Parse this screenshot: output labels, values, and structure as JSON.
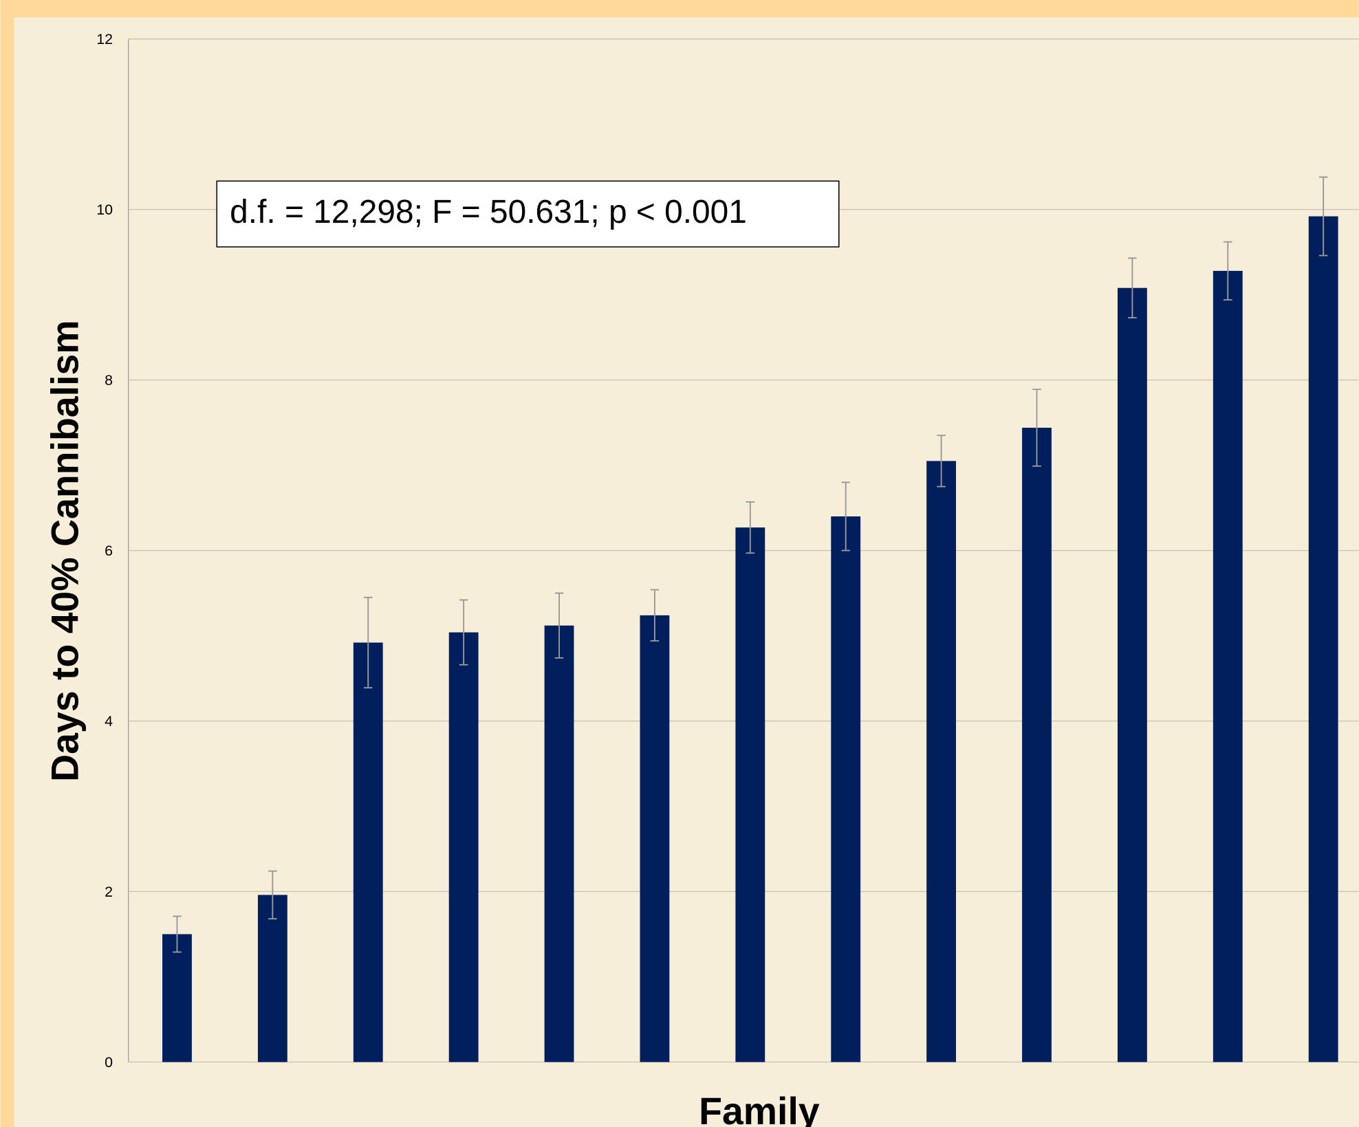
{
  "chart_data": {
    "type": "bar",
    "annotation": "d.f. = 12,298; F = 50.631; p < 0.001",
    "xlabel": "Family",
    "ylabel": "Days to 40% Cannibalism",
    "categories": [
      null,
      null,
      null,
      null,
      null,
      null,
      null,
      null,
      null,
      null,
      null,
      null,
      null
    ],
    "values": [
      1.5,
      1.96,
      4.92,
      5.04,
      5.12,
      5.24,
      6.27,
      6.4,
      7.05,
      7.44,
      9.08,
      9.28,
      9.92
    ],
    "errors": [
      0.21,
      0.28,
      0.53,
      0.38,
      0.38,
      0.3,
      0.3,
      0.4,
      0.3,
      0.45,
      0.35,
      0.34,
      0.46
    ],
    "color": "#001f5c",
    "ylim": [
      0,
      12
    ],
    "yticks": [
      0,
      2,
      4,
      6,
      8,
      10,
      12
    ],
    "grid": true
  }
}
